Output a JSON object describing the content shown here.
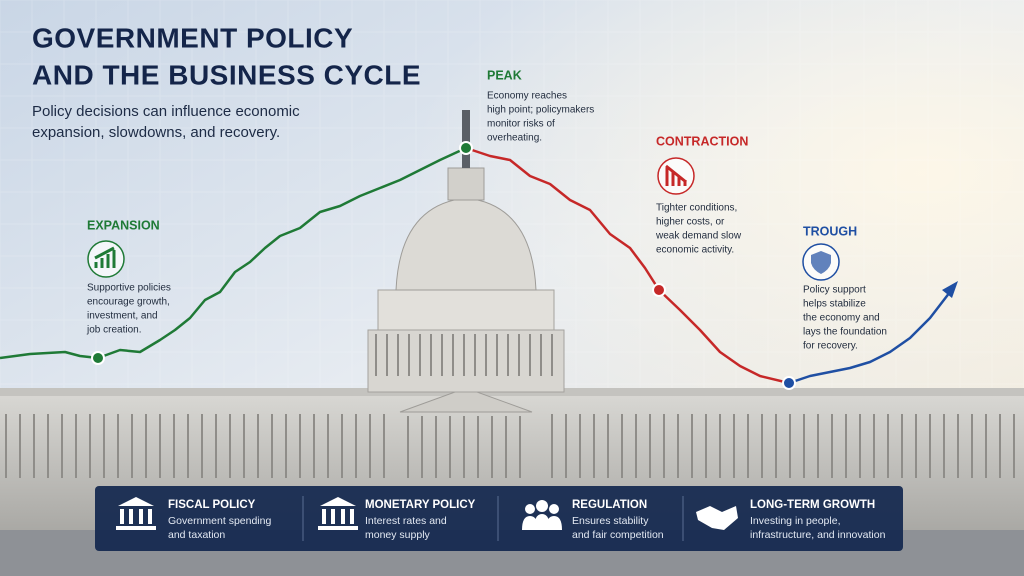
{
  "header": {
    "title": [
      "GOVERNMENT POLICY",
      "AND THE BUSINESS CYCLE"
    ],
    "subtitle": [
      "Policy decisions can influence economic",
      "expansion, slowdowns, and recovery."
    ]
  },
  "phases": [
    {
      "name": "EXPANSION",
      "text": [
        "Supportive policies",
        "encourage growth,",
        "investment, and",
        "job creation."
      ]
    },
    {
      "name": "PEAK",
      "text": [
        "Economy reaches",
        "high point; policymakers",
        "monitor risks of",
        "overheating."
      ]
    },
    {
      "name": "CONTRACTION",
      "text": [
        "Tighter conditions,",
        "higher costs, or",
        "weak demand slow",
        "economic activity."
      ]
    },
    {
      "name": "TROUGH",
      "text": [
        "Policy support",
        "helps stabilize",
        "the economy and",
        "lays the foundation",
        "for recovery."
      ]
    }
  ],
  "footer": [
    {
      "title": "FISCAL POLICY",
      "text": [
        "Government spending",
        "and taxation"
      ]
    },
    {
      "title": "MONETARY POLICY",
      "text": [
        "Interest rates and",
        "money supply"
      ]
    },
    {
      "title": "REGULATION",
      "text": [
        "Ensures stability",
        "and fair competition"
      ]
    },
    {
      "title": "LONG-TERM GROWTH",
      "text": [
        "Investing in people,",
        "infrastructure, and innovation"
      ]
    }
  ]
}
